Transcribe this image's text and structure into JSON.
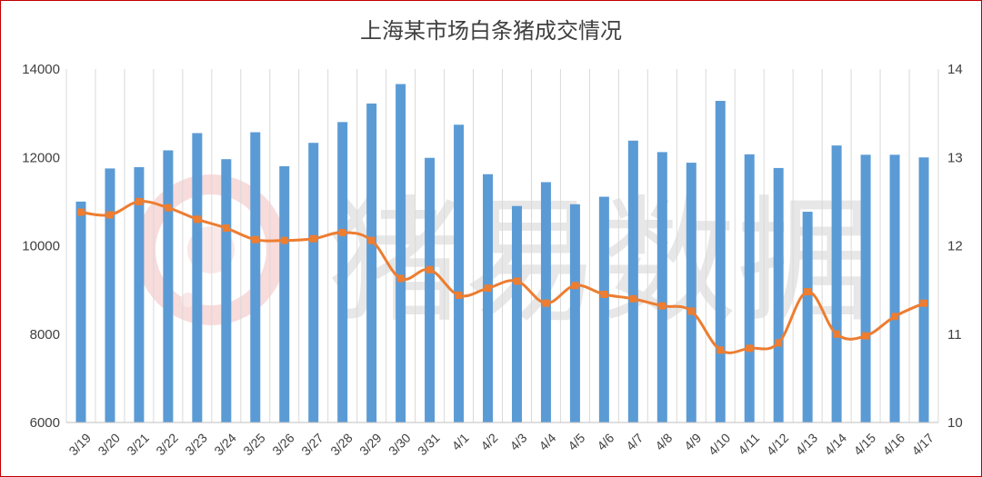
{
  "chart_data": {
    "type": "bar+line",
    "title": "上海某市场白条猪成交情况",
    "categories": [
      "3/19",
      "3/20",
      "3/21",
      "3/22",
      "3/23",
      "3/24",
      "3/25",
      "3/26",
      "3/27",
      "3/28",
      "3/29",
      "3/30",
      "3/31",
      "4/1",
      "4/2",
      "4/3",
      "4/4",
      "4/5",
      "4/6",
      "4/7",
      "4/8",
      "4/9",
      "4/10",
      "4/11",
      "4/12",
      "4/13",
      "4/14",
      "4/15",
      "4/16",
      "4/17"
    ],
    "series": [
      {
        "type": "bar",
        "axis": "left",
        "color": "#5b9bd5",
        "values": [
          11000,
          11750,
          11780,
          12160,
          12550,
          11960,
          12570,
          11800,
          12330,
          12800,
          13220,
          13660,
          11990,
          12740,
          11620,
          10900,
          11440,
          10940,
          11110,
          12380,
          12120,
          11880,
          13280,
          12070,
          11760,
          10770,
          12270,
          12060,
          12060,
          12000
        ]
      },
      {
        "type": "line",
        "axis": "right",
        "color": "#ed7d31",
        "values": [
          12.38,
          12.35,
          12.5,
          12.43,
          12.3,
          12.2,
          12.07,
          12.06,
          12.08,
          12.15,
          12.06,
          11.63,
          11.73,
          11.44,
          11.52,
          11.6,
          11.35,
          11.55,
          11.45,
          11.4,
          11.32,
          11.26,
          10.82,
          10.84,
          10.9,
          11.48,
          11.0,
          10.98,
          11.2,
          11.35
        ]
      }
    ],
    "y_left": {
      "min": 6000,
      "max": 14000,
      "ticks": [
        6000,
        8000,
        10000,
        12000,
        14000
      ]
    },
    "y_right": {
      "min": 10,
      "max": 14,
      "ticks": [
        10,
        11,
        12,
        13,
        14
      ]
    },
    "grid": "vertical",
    "legend": "none"
  },
  "watermark": {
    "text": "猪易数据",
    "color": "#d9d9d9",
    "logo_color": "#f4cccc"
  }
}
